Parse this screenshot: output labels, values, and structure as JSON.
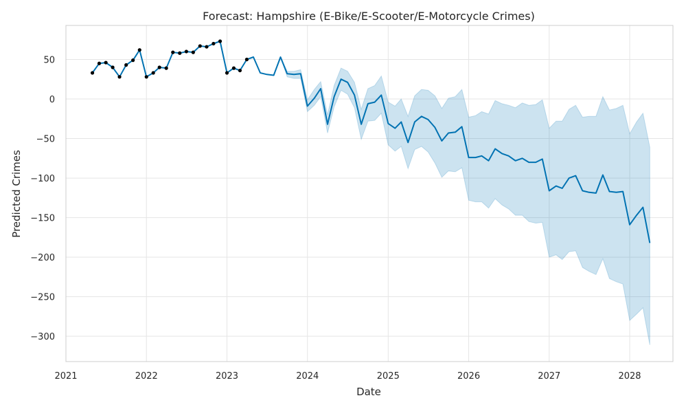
{
  "chart_data": {
    "type": "line",
    "title": "Forecast: Hampshire (E-Bike/E-Scooter/E-Motorcycle Crimes)",
    "xlabel": "Date",
    "ylabel": "Predicted Crimes",
    "xlim": [
      "2021-01-01",
      "2028-07-15"
    ],
    "ylim": [
      -332,
      93
    ],
    "x_ticks": [
      "2021",
      "2022",
      "2023",
      "2024",
      "2025",
      "2026",
      "2027",
      "2028"
    ],
    "y_ticks": [
      50,
      0,
      -50,
      -100,
      -150,
      -200,
      -250,
      -300
    ],
    "grid": true,
    "colors": {
      "forecast_line": "#0072b2",
      "uncertainty_band": "#0072b2",
      "observed_points": "#000000",
      "grid": "#e5e5e5",
      "frame": "#cccccc"
    },
    "observed": {
      "x": [
        "2021-05",
        "2021-06",
        "2021-07",
        "2021-08",
        "2021-09",
        "2021-10",
        "2021-11",
        "2021-12",
        "2022-01",
        "2022-02",
        "2022-03",
        "2022-04",
        "2022-05",
        "2022-06",
        "2022-07",
        "2022-08",
        "2022-09",
        "2022-10",
        "2022-11",
        "2022-12",
        "2023-01",
        "2023-02",
        "2023-03",
        "2023-04"
      ],
      "y": [
        33,
        45,
        46,
        40,
        28,
        43,
        49,
        62,
        28,
        33,
        40,
        39,
        59,
        58,
        60,
        59,
        67,
        66,
        70,
        73,
        33,
        39,
        36,
        50
      ]
    },
    "forecast": {
      "x": [
        "2021-05",
        "2021-06",
        "2021-07",
        "2021-08",
        "2021-09",
        "2021-10",
        "2021-11",
        "2021-12",
        "2022-01",
        "2022-02",
        "2022-03",
        "2022-04",
        "2022-05",
        "2022-06",
        "2022-07",
        "2022-08",
        "2022-09",
        "2022-10",
        "2022-11",
        "2022-12",
        "2023-01",
        "2023-02",
        "2023-03",
        "2023-04",
        "2023-05",
        "2023-06",
        "2023-07",
        "2023-08",
        "2023-09",
        "2023-10",
        "2023-11",
        "2023-12",
        "2024-01",
        "2024-02",
        "2024-03",
        "2024-04",
        "2024-05",
        "2024-06",
        "2024-07",
        "2024-08",
        "2024-09",
        "2024-10",
        "2024-11",
        "2024-12",
        "2025-01",
        "2025-02",
        "2025-03",
        "2025-04",
        "2025-05",
        "2025-06",
        "2025-07",
        "2025-08",
        "2025-09",
        "2025-10",
        "2025-11",
        "2025-12",
        "2026-01",
        "2026-02",
        "2026-03",
        "2026-04",
        "2026-05",
        "2026-06",
        "2026-07",
        "2026-08",
        "2026-09",
        "2026-10",
        "2026-11",
        "2026-12",
        "2027-01",
        "2027-02",
        "2027-03",
        "2027-04",
        "2027-05",
        "2027-06",
        "2027-07",
        "2027-08",
        "2027-09",
        "2027-10",
        "2027-11",
        "2027-12",
        "2028-01",
        "2028-02",
        "2028-03",
        "2028-04"
      ],
      "yhat": [
        33,
        45,
        46,
        40,
        28,
        43,
        49,
        62,
        28,
        33,
        40,
        39,
        59,
        58,
        60,
        59,
        67,
        66,
        70,
        73,
        33,
        39,
        36,
        50,
        53,
        33,
        31,
        30,
        53,
        32,
        31,
        32,
        -9,
        1,
        13,
        -32,
        3,
        25,
        21,
        5,
        -32,
        -6,
        -4,
        5,
        -31,
        -37,
        -29,
        -55,
        -29,
        -22,
        -26,
        -36,
        -53,
        -43,
        -42,
        -35,
        -74,
        -74,
        -72,
        -78,
        -63,
        -69,
        -72,
        -78,
        -75,
        -80,
        -80,
        -76,
        -116,
        -110,
        -113,
        -100,
        -97,
        -116,
        -118,
        -119,
        -96,
        -117,
        -118,
        -117,
        -159,
        -147,
        -137,
        -182
      ],
      "yhat_lower": [
        33,
        45,
        46,
        40,
        28,
        43,
        49,
        62,
        28,
        33,
        40,
        39,
        59,
        58,
        60,
        59,
        67,
        66,
        70,
        73,
        33,
        39,
        36,
        50,
        53,
        33,
        31,
        30,
        53,
        28,
        26,
        26,
        -16,
        -8,
        3,
        -43,
        -10,
        11,
        6,
        -11,
        -51,
        -28,
        -27,
        -18,
        -58,
        -66,
        -60,
        -88,
        -64,
        -60,
        -67,
        -81,
        -99,
        -91,
        -92,
        -87,
        -128,
        -130,
        -130,
        -138,
        -126,
        -134,
        -139,
        -147,
        -147,
        -155,
        -157,
        -156,
        -200,
        -197,
        -203,
        -193,
        -192,
        -213,
        -218,
        -222,
        -202,
        -227,
        -231,
        -234,
        -280,
        -272,
        -264,
        -311
      ],
      "yhat_upper": [
        33,
        45,
        46,
        40,
        28,
        43,
        49,
        62,
        28,
        33,
        40,
        39,
        59,
        58,
        60,
        59,
        67,
        66,
        70,
        73,
        33,
        39,
        36,
        50,
        53,
        33,
        31,
        30,
        53,
        35,
        35,
        37,
        -1,
        12,
        22,
        -20,
        17,
        39,
        35,
        21,
        -13,
        13,
        17,
        29,
        -4,
        -9,
        0,
        -22,
        4,
        12,
        11,
        4,
        -12,
        1,
        3,
        12,
        -23,
        -21,
        -16,
        -19,
        -2,
        -6,
        -8,
        -11,
        -5,
        -8,
        -7,
        -1,
        -37,
        -28,
        -28,
        -13,
        -8,
        -23,
        -22,
        -22,
        3,
        -14,
        -12,
        -8,
        -44,
        -29,
        -18,
        -61
      ]
    }
  }
}
